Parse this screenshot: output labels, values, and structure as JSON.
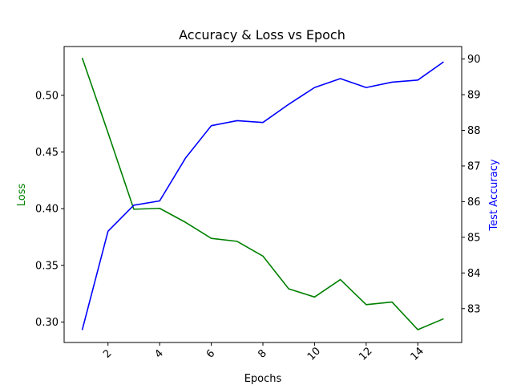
{
  "chart_data": {
    "type": "line",
    "title": "Accuracy & Loss vs Epoch",
    "xlabel": "Epochs",
    "ylabel_left": "Loss",
    "ylabel_right": "Test Accuracy",
    "xlim": [
      0.3,
      15.7
    ],
    "ylim_left": [
      0.282,
      0.543
    ],
    "ylim_right": [
      82.05,
      90.35
    ],
    "x_ticks": [
      2,
      4,
      6,
      8,
      10,
      12,
      14
    ],
    "y_ticks_left": [
      0.3,
      0.35,
      0.4,
      0.45,
      0.5
    ],
    "y_ticks_right": [
      83,
      84,
      85,
      86,
      87,
      88,
      89,
      90
    ],
    "grid": false,
    "x": [
      1,
      2,
      3,
      4,
      5,
      6,
      7,
      8,
      9,
      10,
      11,
      12,
      13,
      14,
      15
    ],
    "series": [
      {
        "axis": "left",
        "color": "#008000",
        "values": [
          0.533,
          0.467,
          0.3995,
          0.4003,
          0.388,
          0.3738,
          0.3712,
          0.3582,
          0.3293,
          0.3221,
          0.3375,
          0.3154,
          0.3177,
          0.2933,
          0.3029
        ]
      },
      {
        "axis": "right",
        "color": "#0000ff",
        "values": [
          82.4,
          85.17,
          85.9,
          86.02,
          87.22,
          88.13,
          88.27,
          88.22,
          88.73,
          89.2,
          89.45,
          89.2,
          89.35,
          89.41,
          89.92
        ]
      }
    ]
  }
}
